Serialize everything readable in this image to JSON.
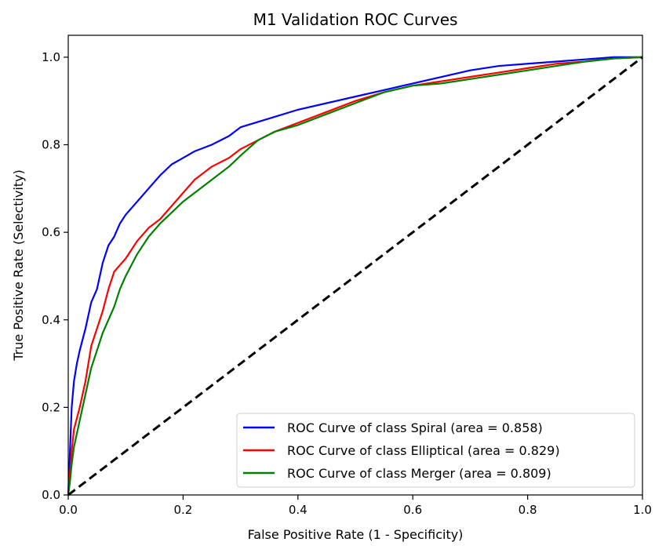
{
  "chart_data": {
    "type": "line",
    "title": "M1 Validation ROC Curves",
    "xlabel": "False Positive Rate (1 - Specificity)",
    "ylabel": "True Positive Rate (Selectivity)",
    "xlim": [
      0.0,
      1.0
    ],
    "ylim": [
      0.0,
      1.05
    ],
    "xticks": [
      "0.0",
      "0.2",
      "0.4",
      "0.6",
      "0.8",
      "1.0"
    ],
    "yticks": [
      "0.0",
      "0.2",
      "0.4",
      "0.6",
      "0.8",
      "1.0"
    ],
    "grid": false,
    "legend_position": "lower-right",
    "series": [
      {
        "name": "ROC Curve of class Spiral (area = 0.858)",
        "color": "#0000ff",
        "x": [
          0.0,
          0.003,
          0.006,
          0.01,
          0.015,
          0.02,
          0.03,
          0.04,
          0.05,
          0.06,
          0.07,
          0.08,
          0.09,
          0.1,
          0.12,
          0.14,
          0.16,
          0.18,
          0.2,
          0.22,
          0.25,
          0.28,
          0.3,
          0.35,
          0.4,
          0.45,
          0.5,
          0.55,
          0.6,
          0.65,
          0.7,
          0.75,
          0.8,
          0.85,
          0.9,
          0.95,
          1.0
        ],
        "y": [
          0.0,
          0.1,
          0.2,
          0.26,
          0.3,
          0.33,
          0.38,
          0.44,
          0.47,
          0.53,
          0.57,
          0.59,
          0.62,
          0.64,
          0.67,
          0.7,
          0.73,
          0.755,
          0.77,
          0.785,
          0.8,
          0.82,
          0.84,
          0.86,
          0.88,
          0.895,
          0.91,
          0.925,
          0.94,
          0.955,
          0.97,
          0.98,
          0.985,
          0.99,
          0.995,
          1.0,
          1.0
        ]
      },
      {
        "name": "ROC Curve of class Elliptical (area = 0.829)",
        "color": "#ff0000",
        "x": [
          0.0,
          0.003,
          0.006,
          0.01,
          0.02,
          0.03,
          0.04,
          0.05,
          0.06,
          0.07,
          0.08,
          0.09,
          0.1,
          0.12,
          0.14,
          0.16,
          0.18,
          0.2,
          0.22,
          0.25,
          0.28,
          0.3,
          0.33,
          0.36,
          0.4,
          0.45,
          0.5,
          0.55,
          0.6,
          0.65,
          0.7,
          0.75,
          0.8,
          0.85,
          0.9,
          0.95,
          1.0
        ],
        "y": [
          0.0,
          0.05,
          0.1,
          0.15,
          0.2,
          0.26,
          0.34,
          0.38,
          0.42,
          0.47,
          0.51,
          0.525,
          0.54,
          0.58,
          0.61,
          0.63,
          0.66,
          0.69,
          0.72,
          0.75,
          0.77,
          0.79,
          0.81,
          0.83,
          0.85,
          0.875,
          0.9,
          0.92,
          0.935,
          0.945,
          0.955,
          0.965,
          0.975,
          0.985,
          0.99,
          0.997,
          1.0
        ]
      },
      {
        "name": "ROC Curve of class Merger (area = 0.809)",
        "color": "#008000",
        "x": [
          0.0,
          0.003,
          0.006,
          0.01,
          0.02,
          0.03,
          0.04,
          0.05,
          0.06,
          0.07,
          0.08,
          0.09,
          0.1,
          0.12,
          0.14,
          0.16,
          0.18,
          0.2,
          0.22,
          0.25,
          0.28,
          0.3,
          0.33,
          0.36,
          0.4,
          0.45,
          0.5,
          0.55,
          0.6,
          0.65,
          0.7,
          0.75,
          0.8,
          0.85,
          0.9,
          0.95,
          1.0
        ],
        "y": [
          0.0,
          0.03,
          0.07,
          0.11,
          0.17,
          0.23,
          0.29,
          0.33,
          0.37,
          0.4,
          0.43,
          0.47,
          0.5,
          0.55,
          0.59,
          0.62,
          0.645,
          0.67,
          0.69,
          0.72,
          0.75,
          0.775,
          0.81,
          0.83,
          0.845,
          0.87,
          0.895,
          0.92,
          0.935,
          0.94,
          0.95,
          0.96,
          0.97,
          0.98,
          0.99,
          0.997,
          1.0
        ]
      },
      {
        "name": "",
        "color": "#000000",
        "dashed": true,
        "x": [
          0.0,
          1.0
        ],
        "y": [
          0.0,
          1.0
        ]
      }
    ]
  }
}
